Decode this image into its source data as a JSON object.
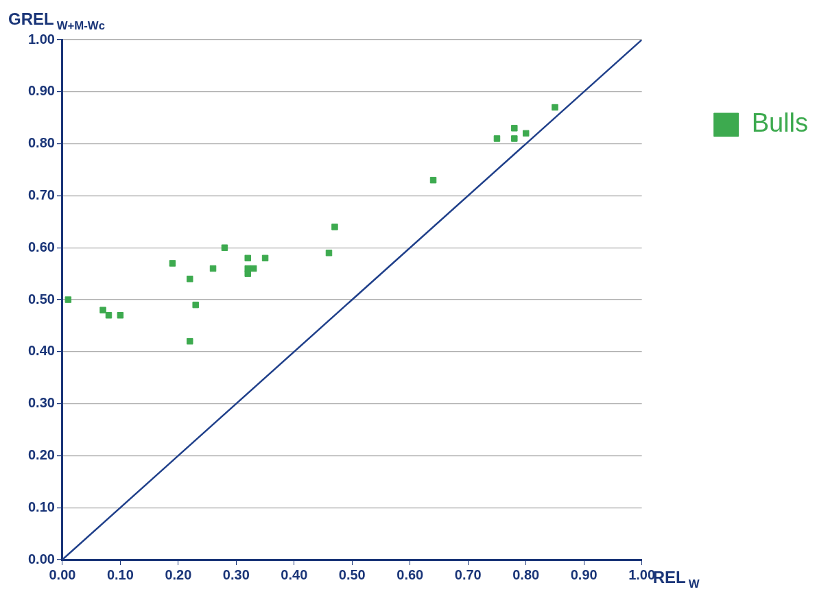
{
  "chart_data": {
    "type": "scatter",
    "xlabel": "REL$_{W}$",
    "ylabel": "GREL$_{W+M-Wc}$",
    "xlim": [
      0,
      1
    ],
    "ylim": [
      0,
      1
    ],
    "xticks": [
      {
        "value": 0,
        "label": "0.00"
      },
      {
        "value": 0.1,
        "label": "0.10"
      },
      {
        "value": 0.2,
        "label": "0.20"
      },
      {
        "value": 0.3,
        "label": "0.30"
      },
      {
        "value": 0.4,
        "label": "0.40"
      },
      {
        "value": 0.5,
        "label": "0.50"
      },
      {
        "value": 0.6,
        "label": "0.60"
      },
      {
        "value": 0.7,
        "label": "0.70"
      },
      {
        "value": 0.8,
        "label": "0.80"
      },
      {
        "value": 0.9,
        "label": "0.90"
      },
      {
        "value": 1,
        "label": "1.00"
      }
    ],
    "yticks": [
      {
        "value": 0,
        "label": "0.00"
      },
      {
        "value": 0.1,
        "label": "0.10"
      },
      {
        "value": 0.2,
        "label": "0.20"
      },
      {
        "value": 0.3,
        "label": "0.30"
      },
      {
        "value": 0.4,
        "label": "0.40"
      },
      {
        "value": 0.5,
        "label": "0.50"
      },
      {
        "value": 0.6,
        "label": "0.60"
      },
      {
        "value": 0.7,
        "label": "0.70"
      },
      {
        "value": 0.8,
        "label": "0.80"
      },
      {
        "value": 0.9,
        "label": "0.90"
      },
      {
        "value": 1,
        "label": "1.00"
      }
    ],
    "grid": "y",
    "legend": "top right",
    "marker": "square",
    "series": [
      {
        "name": "Bulls",
        "type": "scatter",
        "color": "#3daa4f",
        "x": [
          0.01,
          0.07,
          0.08,
          0.1,
          0.19,
          0.22,
          0.22,
          0.23,
          0.26,
          0.28,
          0.32,
          0.32,
          0.32,
          0.33,
          0.35,
          0.46,
          0.47,
          0.64,
          0.75,
          0.78,
          0.78,
          0.8,
          0.85
        ],
        "values": [
          0.5,
          0.48,
          0.47,
          0.47,
          0.57,
          0.54,
          0.42,
          0.49,
          0.56,
          0.6,
          0.58,
          0.56,
          0.55,
          0.56,
          0.58,
          0.59,
          0.64,
          0.73,
          0.81,
          0.83,
          0.81,
          0.82,
          0.87
        ]
      },
      {
        "type": "line",
        "color": "#1f3f8a",
        "marker": "none",
        "x": [
          0,
          1
        ],
        "values": [
          0,
          1
        ]
      }
    ]
  }
}
